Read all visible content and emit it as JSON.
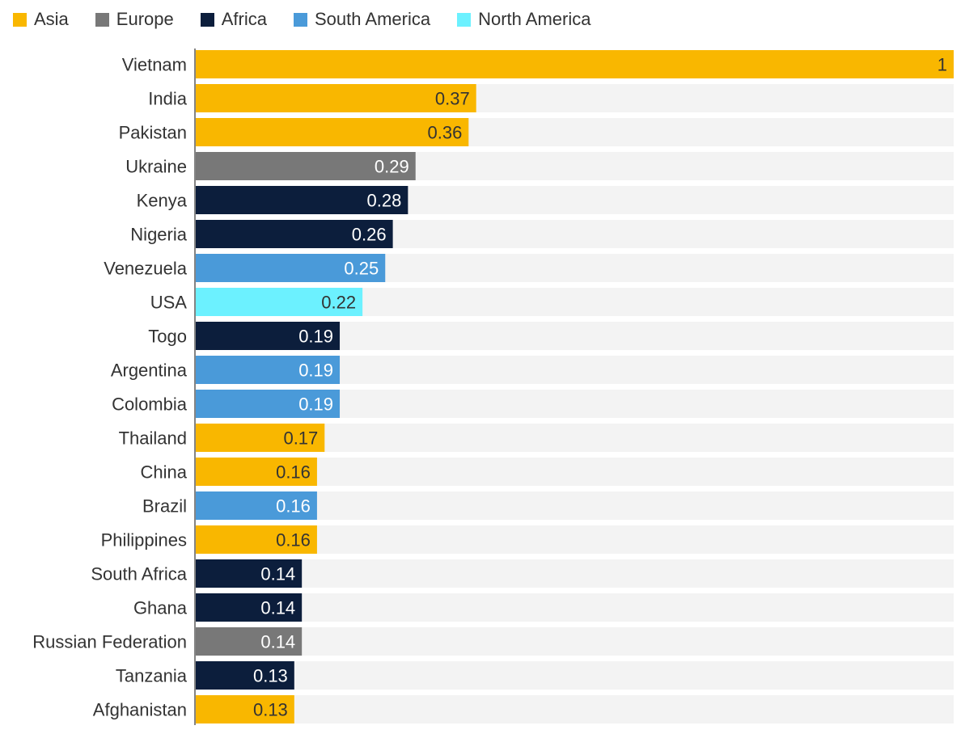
{
  "chart_data": {
    "type": "bar",
    "orientation": "horizontal",
    "title": "",
    "xlabel": "",
    "ylabel": "",
    "xlim": [
      0,
      1
    ],
    "grid": false,
    "legend_position": "top-left",
    "legend": [
      {
        "name": "Asia",
        "color": "#F9B700"
      },
      {
        "name": "Europe",
        "color": "#787878"
      },
      {
        "name": "Africa",
        "color": "#0C1E3C"
      },
      {
        "name": "South America",
        "color": "#4A9AD9"
      },
      {
        "name": "North America",
        "color": "#6CF1FF"
      }
    ],
    "categories": [
      "Vietnam",
      "India",
      "Pakistan",
      "Ukraine",
      "Kenya",
      "Nigeria",
      "Venezuela",
      "USA",
      "Togo",
      "Argentina",
      "Colombia",
      "Thailand",
      "China",
      "Brazil",
      "Philippines",
      "South Africa",
      "Ghana",
      "Russian Federation",
      "Tanzania",
      "Afghanistan"
    ],
    "values": [
      1,
      0.37,
      0.36,
      0.29,
      0.28,
      0.26,
      0.25,
      0.22,
      0.19,
      0.19,
      0.19,
      0.17,
      0.16,
      0.16,
      0.16,
      0.14,
      0.14,
      0.14,
      0.13,
      0.13
    ],
    "labels": [
      "1",
      "0.37",
      "0.36",
      "0.29",
      "0.28",
      "0.26",
      "0.25",
      "0.22",
      "0.19",
      "0.19",
      "0.19",
      "0.17",
      "0.16",
      "0.16",
      "0.16",
      "0.14",
      "0.14",
      "0.14",
      "0.13",
      "0.13"
    ],
    "regions": [
      "Asia",
      "Asia",
      "Asia",
      "Europe",
      "Africa",
      "Africa",
      "South America",
      "North America",
      "Africa",
      "South America",
      "South America",
      "Asia",
      "Asia",
      "South America",
      "Asia",
      "Africa",
      "Africa",
      "Europe",
      "Africa",
      "Asia"
    ],
    "track_color": "#F3F3F3",
    "axis_color": "#333333"
  }
}
